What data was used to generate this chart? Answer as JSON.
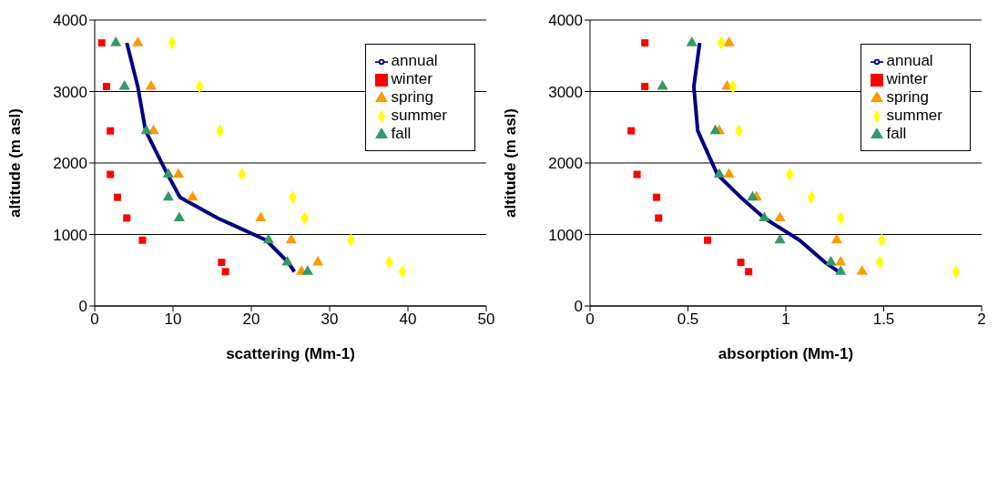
{
  "chart_data": [
    {
      "type": "scatter",
      "xlabel": "scattering (Mm-1)",
      "ylabel": "altitude (m asl)",
      "xlim": [
        0,
        50
      ],
      "xticks": [
        0,
        10,
        20,
        30,
        40,
        50
      ],
      "ylim": [
        0,
        4000
      ],
      "yticks": [
        0,
        1000,
        2000,
        3000,
        4000
      ],
      "grid": "y",
      "legend": "top right",
      "series": [
        {
          "type": "line",
          "name": "annual",
          "color": "#000080",
          "marker": "none",
          "line_style": "solid",
          "x": [
            4.1,
            5.5,
            6.5,
            9.3,
            10.9,
            15.7,
            21.9,
            24.7,
            25.5
          ],
          "values": [
            3680,
            3070,
            2450,
            1840,
            1520,
            1230,
            920,
            610,
            480
          ]
        },
        {
          "name": "winter",
          "color": "#ff0000",
          "marker": "square",
          "x": [
            0.9,
            1.5,
            2.0,
            2.0,
            2.9,
            4.1,
            6.1,
            16.2,
            16.7
          ],
          "values": [
            3680,
            3070,
            2450,
            1840,
            1520,
            1230,
            920,
            610,
            480
          ]
        },
        {
          "name": "spring",
          "color": "#ff9900",
          "marker": "triangle",
          "x": [
            5.5,
            7.2,
            7.5,
            10.7,
            12.5,
            21.2,
            25.1,
            28.5,
            26.4
          ],
          "values": [
            3680,
            3070,
            2450,
            1840,
            1520,
            1230,
            920,
            610,
            480
          ]
        },
        {
          "name": "summer",
          "color": "#ffff00",
          "marker": "diamond",
          "x": [
            9.9,
            13.4,
            16.0,
            18.8,
            25.3,
            26.8,
            32.7,
            37.6,
            39.3
          ],
          "values": [
            3680,
            3070,
            2450,
            1840,
            1520,
            1230,
            920,
            610,
            480
          ]
        },
        {
          "name": "fall",
          "color": "#339966",
          "marker": "triangle",
          "x": [
            2.7,
            3.8,
            6.6,
            9.4,
            9.4,
            10.8,
            22.2,
            24.6,
            27.2
          ],
          "values": [
            3680,
            3070,
            2450,
            1840,
            1520,
            1230,
            920,
            610,
            480
          ]
        }
      ]
    },
    {
      "type": "scatter",
      "xlabel": "absorption (Mm-1)",
      "ylabel": "altitude (m asl)",
      "xlim": [
        0,
        2
      ],
      "xticks": [
        0,
        0.5,
        1,
        1.5,
        2
      ],
      "ylim": [
        0,
        4000
      ],
      "yticks": [
        0,
        1000,
        2000,
        3000,
        4000
      ],
      "grid": "y",
      "legend": "top right",
      "series": [
        {
          "type": "line",
          "name": "annual",
          "color": "#000080",
          "marker": "none",
          "line_style": "solid",
          "x": [
            0.56,
            0.53,
            0.55,
            0.65,
            0.77,
            0.89,
            1.07,
            1.2,
            1.27
          ],
          "values": [
            3680,
            3070,
            2450,
            1840,
            1520,
            1230,
            920,
            610,
            480
          ]
        },
        {
          "name": "winter",
          "color": "#ff0000",
          "marker": "square",
          "x": [
            0.28,
            0.28,
            0.21,
            0.24,
            0.34,
            0.35,
            0.6,
            0.77,
            0.81
          ],
          "values": [
            3680,
            3070,
            2450,
            1840,
            1520,
            1230,
            920,
            610,
            480
          ]
        },
        {
          "name": "spring",
          "color": "#ff9900",
          "marker": "triangle",
          "x": [
            0.71,
            0.7,
            0.66,
            0.71,
            0.85,
            0.97,
            1.26,
            1.28,
            1.39
          ],
          "values": [
            3680,
            3070,
            2450,
            1840,
            1520,
            1230,
            920,
            610,
            480
          ]
        },
        {
          "name": "summer",
          "color": "#ffff00",
          "marker": "diamond",
          "x": [
            0.67,
            0.73,
            0.76,
            1.02,
            1.13,
            1.28,
            1.49,
            1.48,
            1.87
          ],
          "values": [
            3680,
            3070,
            2450,
            1840,
            1520,
            1230,
            920,
            610,
            480
          ]
        },
        {
          "name": "fall",
          "color": "#339966",
          "marker": "triangle",
          "x": [
            0.52,
            0.37,
            0.64,
            0.66,
            0.83,
            0.89,
            0.97,
            1.23,
            1.28
          ],
          "values": [
            3680,
            3070,
            2450,
            1840,
            1520,
            1230,
            920,
            610,
            480
          ]
        }
      ]
    }
  ]
}
